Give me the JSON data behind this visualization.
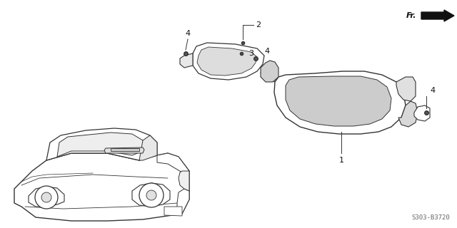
{
  "bg_color": "#ffffff",
  "text_color": "#111111",
  "diagram_code": "S303-B3720",
  "fr_label": "Fr.",
  "line_color": "#333333",
  "line_width": 0.8
}
